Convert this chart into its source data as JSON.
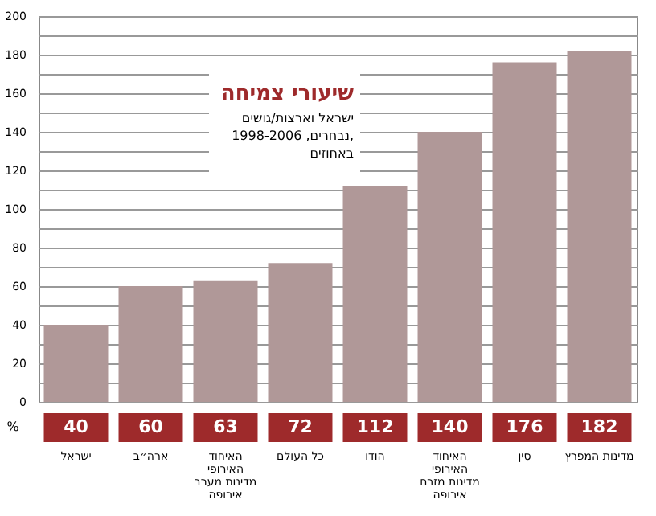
{
  "chart_data": {
    "type": "bar",
    "title": "שיעורי צמיחה",
    "subtitle": "ישראל וארצות/גושים נבחרים, 1998-2006, באחוזים",
    "ylabel": "%",
    "categories": [
      "ישראל",
      "ארה״ב",
      "האיחוד האירופי מדינות מערב אירופה",
      "כל העולם",
      "הודו",
      "האיחוד האירופי מדינות מזרח אירופה",
      "סין",
      "מדינות המפרץ"
    ],
    "values": [
      40,
      60,
      63,
      72,
      112,
      140,
      176,
      182
    ],
    "color": "#b09898",
    "data_labels": true,
    "ylim": [
      0,
      200
    ],
    "yticks": [
      0,
      {
        "value": 10,
        "label": null
      },
      20,
      {
        "value": 30,
        "label": null
      },
      40,
      {
        "value": 50,
        "label": null
      },
      60,
      {
        "value": 70,
        "label": null
      },
      80,
      {
        "value": 90,
        "label": null
      },
      100,
      {
        "value": 110,
        "label": null
      },
      120,
      {
        "value": 130,
        "label": null
      },
      140,
      {
        "value": 150,
        "label": null
      },
      160,
      {
        "value": 170,
        "label": null
      },
      180,
      {
        "value": 190,
        "label": null
      },
      200
    ],
    "grid": true
  }
}
